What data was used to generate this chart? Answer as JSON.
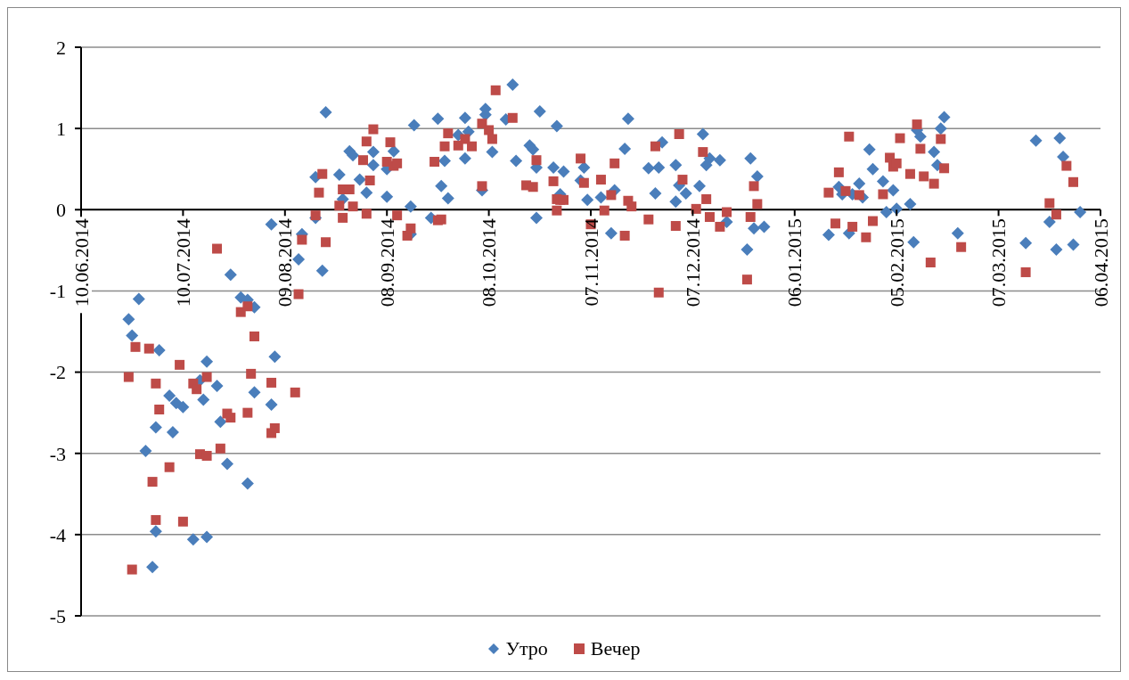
{
  "chart_data": {
    "type": "scatter",
    "legend": "bottom",
    "grid": "y",
    "ylim": [
      -5,
      2
    ],
    "yticks": [
      -5,
      -4,
      -3,
      -2,
      -1,
      0,
      1,
      2
    ],
    "xlim": [
      "2014-06-10",
      "2015-04-06"
    ],
    "xticks": [
      {
        "value": "2014-06-10",
        "label": "10.06.2014"
      },
      {
        "value": "2014-07-10",
        "label": "10.07.2014"
      },
      {
        "value": "2014-08-09",
        "label": "09.08.2014"
      },
      {
        "value": "2014-09-08",
        "label": "08.09.2014"
      },
      {
        "value": "2014-10-08",
        "label": "08.10.2014"
      },
      {
        "value": "2014-11-07",
        "label": "07.11.2014"
      },
      {
        "value": "2014-12-07",
        "label": "07.12.2014"
      },
      {
        "value": "2015-01-06",
        "label": "06.01.2015"
      },
      {
        "value": "2015-02-05",
        "label": "05.02.2015"
      },
      {
        "value": "2015-03-07",
        "label": "07.03.2015"
      },
      {
        "value": "2015-04-06",
        "label": "06.04.2015"
      }
    ],
    "series": [
      {
        "name": "Утро",
        "color": "#4a7ebb",
        "marker": "diamond",
        "x": [
          "2014-06-24",
          "2014-06-25",
          "2014-06-27",
          "2014-06-29",
          "2014-07-01",
          "2014-07-02",
          "2014-07-02",
          "2014-07-03",
          "2014-07-06",
          "2014-07-07",
          "2014-07-08",
          "2014-07-10",
          "2014-07-13",
          "2014-07-15",
          "2014-07-16",
          "2014-07-17",
          "2014-07-17",
          "2014-07-20",
          "2014-07-21",
          "2014-07-23",
          "2014-07-24",
          "2014-07-27",
          "2014-07-29",
          "2014-07-29",
          "2014-07-31",
          "2014-07-31",
          "2014-08-05",
          "2014-08-05",
          "2014-08-06",
          "2014-08-13",
          "2014-08-14",
          "2014-08-18",
          "2014-08-18",
          "2014-08-20",
          "2014-08-21",
          "2014-08-25",
          "2014-08-26",
          "2014-08-28",
          "2014-08-29",
          "2014-08-31",
          "2014-09-02",
          "2014-09-04",
          "2014-09-04",
          "2014-09-08",
          "2014-09-08",
          "2014-09-10",
          "2014-09-15",
          "2014-09-15",
          "2014-09-16",
          "2014-09-21",
          "2014-09-23",
          "2014-09-24",
          "2014-09-25",
          "2014-09-26",
          "2014-09-29",
          "2014-10-01",
          "2014-10-01",
          "2014-10-02",
          "2014-10-06",
          "2014-10-07",
          "2014-10-07",
          "2014-10-09",
          "2014-10-13",
          "2014-10-15",
          "2014-10-16",
          "2014-10-20",
          "2014-10-21",
          "2014-10-22",
          "2014-10-22",
          "2014-10-23",
          "2014-10-27",
          "2014-10-28",
          "2014-10-29",
          "2014-10-30",
          "2014-11-04",
          "2014-11-05",
          "2014-11-06",
          "2014-11-10",
          "2014-11-13",
          "2014-11-14",
          "2014-11-17",
          "2014-11-18",
          "2014-11-24",
          "2014-11-26",
          "2014-11-27",
          "2014-11-28",
          "2014-12-02",
          "2014-12-02",
          "2014-12-03",
          "2014-12-05",
          "2014-12-09",
          "2014-12-10",
          "2014-12-11",
          "2014-12-12",
          "2014-12-15",
          "2014-12-17",
          "2014-12-23",
          "2014-12-24",
          "2014-12-25",
          "2014-12-26",
          "2014-12-28",
          "2015-01-16",
          "2015-01-19",
          "2015-01-20",
          "2015-01-22",
          "2015-01-23",
          "2015-01-25",
          "2015-01-26",
          "2015-01-28",
          "2015-01-29",
          "2015-02-01",
          "2015-02-02",
          "2015-02-04",
          "2015-02-05",
          "2015-02-09",
          "2015-02-10",
          "2015-02-11",
          "2015-02-12",
          "2015-02-16",
          "2015-02-17",
          "2015-02-18",
          "2015-02-19",
          "2015-02-23",
          "2015-03-15",
          "2015-03-18",
          "2015-03-22",
          "2015-03-24",
          "2015-03-25",
          "2015-03-26",
          "2015-03-29",
          "2015-03-31"
        ],
        "values": [
          -1.35,
          -1.55,
          -1.1,
          -2.97,
          -4.4,
          -2.68,
          -3.96,
          -1.73,
          -2.29,
          -2.74,
          -2.38,
          -2.43,
          -4.06,
          -2.1,
          -2.34,
          -4.03,
          -1.87,
          -2.17,
          -2.61,
          -3.13,
          -0.8,
          -1.08,
          -3.37,
          -1.11,
          -1.2,
          -2.25,
          -0.18,
          -2.4,
          -1.81,
          -0.61,
          -0.3,
          -0.1,
          0.4,
          -0.75,
          1.2,
          0.43,
          0.13,
          0.72,
          0.67,
          0.37,
          0.21,
          0.55,
          0.71,
          0.16,
          0.5,
          0.72,
          0.04,
          -0.3,
          1.04,
          -0.1,
          1.12,
          0.29,
          0.6,
          0.14,
          0.92,
          0.63,
          1.13,
          0.96,
          0.24,
          1.17,
          1.24,
          0.71,
          1.11,
          1.54,
          0.6,
          0.79,
          0.74,
          -0.1,
          0.52,
          1.21,
          0.52,
          1.03,
          0.19,
          0.47,
          0.36,
          0.52,
          0.12,
          0.15,
          -0.29,
          0.24,
          0.75,
          1.12,
          0.51,
          0.2,
          0.52,
          0.83,
          0.1,
          0.55,
          0.3,
          0.2,
          0.29,
          0.93,
          0.55,
          0.63,
          0.61,
          -0.15,
          -0.49,
          0.63,
          -0.23,
          0.41,
          -0.21,
          -0.31,
          0.28,
          0.19,
          -0.29,
          0.19,
          0.32,
          0.15,
          0.74,
          0.5,
          0.35,
          -0.03,
          0.24,
          0.01,
          0.07,
          -0.4,
          0.98,
          0.9,
          0.71,
          0.55,
          1.0,
          1.14,
          -0.29,
          -0.41,
          0.85,
          -0.15,
          -0.49,
          0.88,
          0.65,
          -0.43,
          -0.03
        ]
      },
      {
        "name": "Вечер",
        "color": "#be4b48",
        "marker": "square",
        "x": [
          "2014-06-24",
          "2014-06-25",
          "2014-06-26",
          "2014-06-30",
          "2014-07-01",
          "2014-07-02",
          "2014-07-02",
          "2014-07-03",
          "2014-07-06",
          "2014-07-09",
          "2014-07-10",
          "2014-07-13",
          "2014-07-14",
          "2014-07-15",
          "2014-07-17",
          "2014-07-17",
          "2014-07-20",
          "2014-07-21",
          "2014-07-23",
          "2014-07-24",
          "2014-07-27",
          "2014-07-29",
          "2014-07-29",
          "2014-07-30",
          "2014-07-31",
          "2014-08-05",
          "2014-08-05",
          "2014-08-06",
          "2014-08-12",
          "2014-08-13",
          "2014-08-14",
          "2014-08-18",
          "2014-08-19",
          "2014-08-20",
          "2014-08-21",
          "2014-08-25",
          "2014-08-26",
          "2014-08-26",
          "2014-08-28",
          "2014-08-29",
          "2014-09-01",
          "2014-09-02",
          "2014-09-02",
          "2014-09-03",
          "2014-09-04",
          "2014-09-08",
          "2014-09-09",
          "2014-09-10",
          "2014-09-11",
          "2014-09-11",
          "2014-09-14",
          "2014-09-15",
          "2014-09-22",
          "2014-09-23",
          "2014-09-24",
          "2014-09-25",
          "2014-09-26",
          "2014-09-29",
          "2014-10-01",
          "2014-10-03",
          "2014-10-06",
          "2014-10-06",
          "2014-10-08",
          "2014-10-09",
          "2014-10-10",
          "2014-10-15",
          "2014-10-19",
          "2014-10-21",
          "2014-10-22",
          "2014-10-27",
          "2014-10-28",
          "2014-10-28",
          "2014-10-29",
          "2014-10-30",
          "2014-11-04",
          "2014-11-05",
          "2014-11-07",
          "2014-11-10",
          "2014-11-11",
          "2014-11-13",
          "2014-11-14",
          "2014-11-17",
          "2014-11-18",
          "2014-11-19",
          "2014-11-24",
          "2014-11-26",
          "2014-11-27",
          "2014-12-02",
          "2014-12-03",
          "2014-12-04",
          "2014-12-08",
          "2014-12-10",
          "2014-12-11",
          "2014-12-12",
          "2014-12-15",
          "2014-12-17",
          "2014-12-23",
          "2014-12-24",
          "2014-12-25",
          "2014-12-26",
          "2015-01-16",
          "2015-01-18",
          "2015-01-19",
          "2015-01-21",
          "2015-01-22",
          "2015-01-23",
          "2015-01-25",
          "2015-01-27",
          "2015-01-29",
          "2015-02-01",
          "2015-02-03",
          "2015-02-04",
          "2015-02-05",
          "2015-02-06",
          "2015-02-09",
          "2015-02-11",
          "2015-02-12",
          "2015-02-13",
          "2015-02-15",
          "2015-02-16",
          "2015-02-18",
          "2015-02-19",
          "2015-02-24",
          "2015-03-15",
          "2015-03-22",
          "2015-03-24",
          "2015-03-27",
          "2015-03-29"
        ],
        "values": [
          -2.06,
          -4.43,
          -1.69,
          -1.71,
          -3.35,
          -2.14,
          -3.82,
          -2.46,
          -3.17,
          -1.91,
          -3.84,
          -2.14,
          -2.21,
          -3.01,
          -3.03,
          -2.06,
          -0.48,
          -2.94,
          -2.51,
          -2.56,
          -1.26,
          -1.19,
          -2.5,
          -2.02,
          -1.56,
          -2.13,
          -2.75,
          -2.69,
          -2.25,
          -1.04,
          -0.37,
          -0.07,
          0.21,
          0.44,
          -0.4,
          0.05,
          0.25,
          -0.1,
          0.25,
          0.04,
          0.61,
          0.84,
          -0.05,
          0.36,
          0.99,
          0.59,
          0.83,
          0.54,
          0.57,
          -0.07,
          -0.32,
          -0.23,
          0.59,
          -0.13,
          -0.12,
          0.78,
          0.94,
          0.79,
          0.87,
          0.78,
          0.29,
          1.06,
          0.98,
          0.87,
          1.47,
          1.13,
          0.3,
          0.28,
          0.61,
          0.35,
          0.13,
          -0.01,
          0.12,
          0.12,
          0.63,
          0.33,
          -0.18,
          0.37,
          -0.01,
          0.18,
          0.57,
          -0.32,
          0.11,
          0.04,
          -0.12,
          0.78,
          -1.02,
          -0.2,
          0.93,
          0.37,
          0.01,
          0.71,
          0.13,
          -0.09,
          -0.21,
          -0.03,
          -0.86,
          -0.09,
          0.29,
          0.07,
          0.21,
          -0.17,
          0.46,
          0.23,
          0.9,
          -0.21,
          0.18,
          -0.34,
          -0.14,
          0.19,
          0.64,
          0.53,
          0.57,
          0.88,
          0.44,
          1.05,
          0.75,
          0.41,
          -0.65,
          0.32,
          0.87,
          0.51,
          -0.46,
          -0.77,
          0.08,
          -0.06,
          0.54,
          0.34
        ]
      }
    ]
  }
}
